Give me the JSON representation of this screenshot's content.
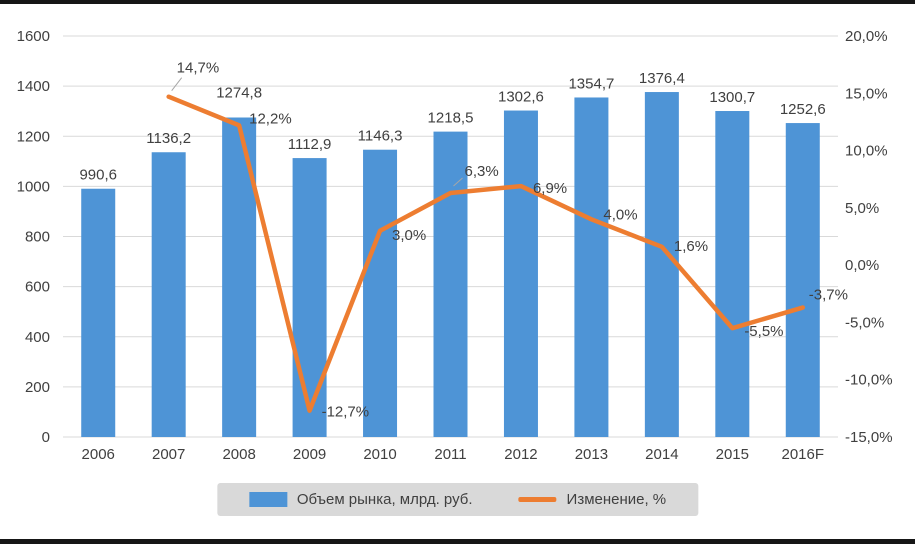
{
  "chart_data": {
    "type": "bar",
    "subtype": "combo-bar-line",
    "title": "",
    "text_color": "#404040",
    "grid_color": "#d9d9d9",
    "categories": [
      "2006",
      "2007",
      "2008",
      "2009",
      "2010",
      "2011",
      "2012",
      "2013",
      "2014",
      "2015",
      "2016F"
    ],
    "series": [
      {
        "name": "Объем рынка, млрд. руб.",
        "type": "bar",
        "color": "#4e94d6",
        "values": [
          990.6,
          1136.2,
          1274.8,
          1112.9,
          1146.3,
          1218.5,
          1302.6,
          1354.7,
          1376.4,
          1300.7,
          1252.6
        ],
        "labels": [
          "990,6",
          "1136,2",
          "1274,8",
          "1112,9",
          "1146,3",
          "1218,5",
          "1302,6",
          "1354,7",
          "1376,4",
          "1300,7",
          "1252,6"
        ]
      },
      {
        "name": "Изменение, %",
        "type": "line",
        "color": "#ed7d31",
        "values": [
          null,
          14.7,
          12.2,
          -12.7,
          3.0,
          6.3,
          6.9,
          4.0,
          1.6,
          -5.5,
          -3.7
        ],
        "labels": [
          null,
          "14,7%",
          "12,2%",
          "-12,7%",
          "3,0%",
          "6,3%",
          "6,9%",
          "4,0%",
          "1,6%",
          "-5,5%",
          "-3,7%"
        ]
      }
    ],
    "axes": {
      "left": {
        "min": 0,
        "max": 1600,
        "ticks": [
          "0",
          "200",
          "400",
          "600",
          "800",
          "1000",
          "1200",
          "1400",
          "1600"
        ]
      },
      "right": {
        "min": -15,
        "max": 20,
        "ticks": [
          "20,0%",
          "15,0%",
          "10,0%",
          "5,0%",
          "0,0%",
          "-5,0%",
          "-10,0%",
          "-15,0%"
        ]
      }
    },
    "legend_position": "bottom",
    "grid": "horizontal"
  }
}
